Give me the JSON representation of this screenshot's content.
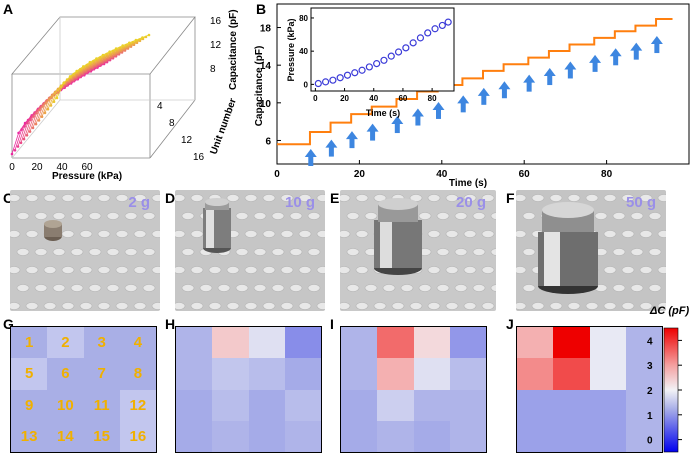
{
  "panels": {
    "A": "A",
    "B": "B",
    "C": "C",
    "D": "D",
    "E": "E",
    "F": "F",
    "G": "G",
    "H": "H",
    "I": "I",
    "J": "J"
  },
  "chart_data": [
    {
      "panel": "A",
      "type": "line",
      "title": "",
      "xlabel": "Pressure (kPa)",
      "ylabel": "Capacitance (pF)",
      "zlabel": "Unit number",
      "x_ticks": [
        "0",
        "20",
        "40",
        "60"
      ],
      "y_ticks": [
        "8",
        "12",
        "16"
      ],
      "z_ticks": [
        "4",
        "8",
        "12",
        "16"
      ],
      "series_count": 16
    },
    {
      "panel": "B",
      "type": "line",
      "xlabel": "Time (s)",
      "ylabel": "Capacitance (pF)",
      "xlim": [
        0,
        100
      ],
      "ylim": [
        3.5,
        20.5
      ],
      "x_ticks": [
        "0",
        "20",
        "40",
        "60",
        "80"
      ],
      "y_ticks": [
        "6",
        "10",
        "14",
        "18"
      ],
      "steps": [
        {
          "t": 0,
          "c": 5.6
        },
        {
          "t": 8,
          "c": 6.9
        },
        {
          "t": 13,
          "c": 7.9
        },
        {
          "t": 18,
          "c": 8.8
        },
        {
          "t": 23,
          "c": 9.6
        },
        {
          "t": 29,
          "c": 10.4
        },
        {
          "t": 34,
          "c": 11.2
        },
        {
          "t": 39,
          "c": 11.9
        },
        {
          "t": 45,
          "c": 12.6
        },
        {
          "t": 50,
          "c": 13.4
        },
        {
          "t": 55,
          "c": 14.1
        },
        {
          "t": 61,
          "c": 14.8
        },
        {
          "t": 66,
          "c": 15.5
        },
        {
          "t": 71,
          "c": 16.2
        },
        {
          "t": 77,
          "c": 16.9
        },
        {
          "t": 82,
          "c": 17.6
        },
        {
          "t": 87,
          "c": 18.2
        },
        {
          "t": 92,
          "c": 18.9
        },
        {
          "t": 96,
          "c": 18.9
        }
      ],
      "arrow_times": [
        7,
        12,
        17,
        22,
        28,
        33,
        38,
        44,
        49,
        54,
        60,
        65,
        70,
        76,
        81,
        86,
        91
      ]
    },
    {
      "panel": "B-inset",
      "type": "scatter",
      "xlabel": "Time (s)",
      "ylabel": "Pressure (kPa)",
      "xlim": [
        -3,
        95
      ],
      "ylim": [
        -8,
        92
      ],
      "x_ticks": [
        "0",
        "20",
        "40",
        "60",
        "80"
      ],
      "y_ticks": [
        "0",
        "40",
        "80"
      ],
      "x": [
        2,
        7,
        12,
        17,
        22,
        27,
        32,
        37,
        42,
        47,
        52,
        57,
        62,
        67,
        72,
        77,
        82,
        87,
        91
      ],
      "y": [
        1,
        3,
        5,
        8,
        11,
        14,
        17,
        21,
        25,
        29,
        34,
        39,
        44,
        50,
        56,
        62,
        67,
        71,
        75
      ]
    },
    {
      "panel": "H-J",
      "type": "heatmap",
      "colorbar_title": "ΔC (pF)",
      "colorbar_ticks": [
        "4",
        "3",
        "2",
        "1",
        "0"
      ],
      "vmin": -0.5,
      "vmax": 4.5,
      "H": [
        [
          1.3,
          2.5,
          1.8,
          0.9
        ],
        [
          1.3,
          1.5,
          1.4,
          1.2
        ],
        [
          1.2,
          1.4,
          1.2,
          1.4
        ],
        [
          1.2,
          1.3,
          1.2,
          1.3
        ]
      ],
      "I": [
        [
          1.3,
          3.5,
          2.3,
          1.0
        ],
        [
          1.3,
          2.8,
          1.8,
          1.4
        ],
        [
          1.2,
          1.6,
          1.3,
          1.3
        ],
        [
          1.2,
          1.3,
          1.2,
          1.3
        ]
      ],
      "J": [
        [
          2.8,
          4.6,
          1.9,
          1.3
        ],
        [
          3.2,
          3.8,
          1.9,
          1.3
        ],
        [
          1.1,
          1.1,
          1.1,
          1.3
        ],
        [
          1.1,
          1.1,
          1.1,
          1.3
        ]
      ]
    }
  ],
  "photos": {
    "C": "2 g",
    "D": "10 g",
    "E": "20 g",
    "F": "50 g"
  },
  "grid_numbers": [
    "1",
    "2",
    "3",
    "4",
    "5",
    "6",
    "7",
    "8",
    "9",
    "10",
    "11",
    "12",
    "13",
    "14",
    "15",
    "16"
  ],
  "colors": {
    "orange": "#ff7f0e",
    "blue_arrow": "#3d86e0",
    "marker": "#3b3bd8",
    "weight_text": "#9a8fe8",
    "grid_number": "#f0b000"
  }
}
